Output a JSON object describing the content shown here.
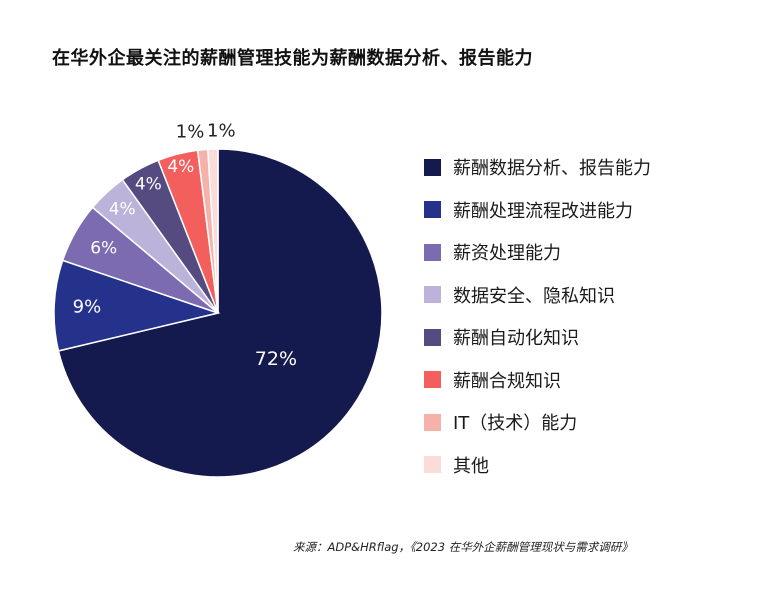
{
  "title": "在华外企最关注的薪酬管理技能为薪酬数据分析、报告能力",
  "source": "来源：ADP&HRflag，《2023 在华外企薪酬管理现状与需求调研》",
  "chart_data": {
    "type": "pie",
    "title": "在华外企最关注的薪酬管理技能为薪酬数据分析、报告能力",
    "legend_position": "right",
    "slices": [
      {
        "label": "薪酬数据分析、报告能力",
        "value": 72,
        "value_label": "72%",
        "color": "#141a4e"
      },
      {
        "label": "薪酬处理流程改进能力",
        "value": 9,
        "value_label": "9%",
        "color": "#25328b"
      },
      {
        "label": "薪资处理能力",
        "value": 6,
        "value_label": "6%",
        "color": "#7d6bb1"
      },
      {
        "label": "数据安全、隐私知识",
        "value": 4,
        "value_label": "4%",
        "color": "#bbb3d9"
      },
      {
        "label": "薪酬自动化知识",
        "value": 4,
        "value_label": "4%",
        "color": "#554b80"
      },
      {
        "label": "薪酬合规知识",
        "value": 4,
        "value_label": "4%",
        "color": "#f25f5c"
      },
      {
        "label": "IT（技术）能力",
        "value": 1,
        "value_label": "1%",
        "color": "#f5b2aa"
      },
      {
        "label": "其他",
        "value": 1,
        "value_label": "1%",
        "color": "#fbdcd8"
      }
    ]
  }
}
